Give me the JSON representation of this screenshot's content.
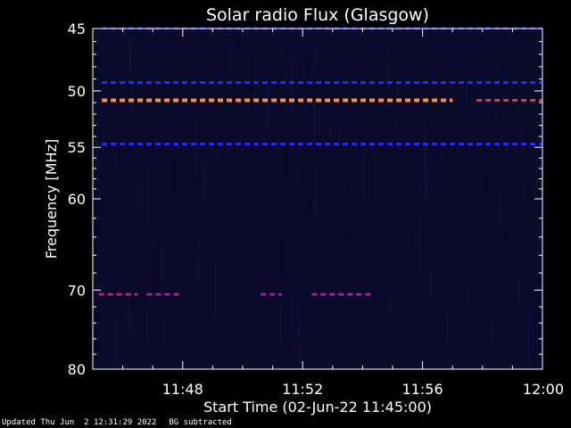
{
  "chart_data": {
    "type": "heatmap",
    "title": "Solar radio Flux (Glasgow)",
    "xlabel": "Start Time (02-Jun-22 11:45:00)",
    "ylabel": "Frequency [MHz]",
    "x_range_minutes": [
      0,
      15
    ],
    "y_range_mhz": [
      45,
      80
    ],
    "y_scale": "log",
    "x_tick_labels": [
      {
        "minute": 3,
        "label": "11:48"
      },
      {
        "minute": 7,
        "label": "11:52"
      },
      {
        "minute": 11,
        "label": "11:56"
      },
      {
        "minute": 15,
        "label": "12:00"
      }
    ],
    "y_tick_labels": [
      45,
      50,
      55,
      60,
      70,
      80
    ],
    "background_color": "#0a0a2a",
    "emission_bands": [
      {
        "freq_mhz": 45.0,
        "t_start": 0.3,
        "t_end": 15,
        "color": "#2020d0",
        "intensity": "low"
      },
      {
        "freq_mhz": 49.3,
        "t_start": 0.3,
        "t_end": 15,
        "color": "#2a2aff",
        "intensity": "medium"
      },
      {
        "freq_mhz": 50.8,
        "t_start": 0.3,
        "t_end": 12.0,
        "color": "#ff9040",
        "intensity": "high"
      },
      {
        "freq_mhz": 50.8,
        "t_start": 12.8,
        "t_end": 15,
        "color": "#d04040",
        "intensity": "medium"
      },
      {
        "freq_mhz": 54.7,
        "t_start": 0.3,
        "t_end": 15,
        "color": "#2a2aff",
        "intensity": "medium"
      },
      {
        "freq_mhz": 70.5,
        "t_start": 0.2,
        "t_end": 1.5,
        "color": "#c02060",
        "intensity": "medium"
      },
      {
        "freq_mhz": 70.5,
        "t_start": 1.8,
        "t_end": 2.9,
        "color": "#a020a0",
        "intensity": "low"
      },
      {
        "freq_mhz": 70.5,
        "t_start": 5.6,
        "t_end": 6.3,
        "color": "#a020a0",
        "intensity": "low"
      },
      {
        "freq_mhz": 70.5,
        "t_start": 7.3,
        "t_end": 9.3,
        "color": "#a020a0",
        "intensity": "low"
      }
    ]
  },
  "footer": {
    "updated": "Updated Thu Jun  2 12:31:29 2022",
    "note": "BG subtracted"
  }
}
